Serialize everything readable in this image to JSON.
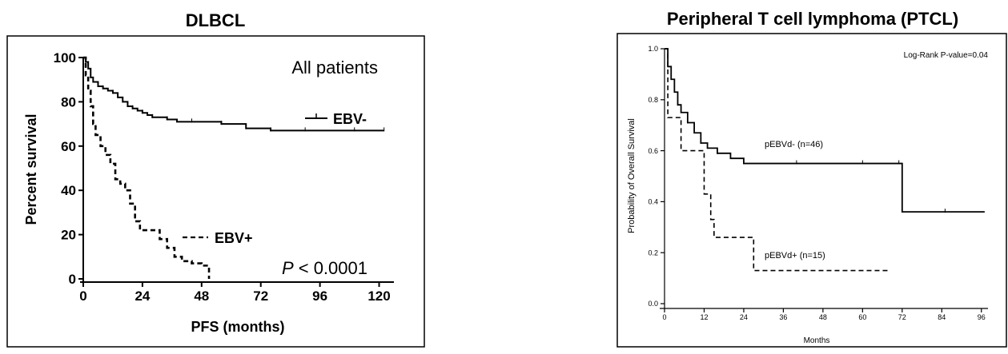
{
  "chart_data": [
    {
      "type": "line",
      "style": "kaplan-meier-step",
      "title": "DLBCL",
      "xlabel": "PFS (months)",
      "ylabel": "Percent survival",
      "xlim": [
        0,
        126
      ],
      "ylim": [
        0,
        100
      ],
      "xticks": [
        "0",
        "24",
        "48",
        "72",
        "96",
        "120"
      ],
      "yticks": [
        "0",
        "20",
        "40",
        "60",
        "80",
        "100"
      ],
      "annotation_group": "All patients",
      "annotation_p_italic": "P",
      "annotation_p_value": " < 0.0001",
      "grid": false,
      "series": [
        {
          "name": "EBV-",
          "line": "solid",
          "x": [
            0,
            1,
            2,
            3,
            4,
            6,
            8,
            10,
            12,
            14,
            16,
            18,
            20,
            22,
            24,
            26,
            28,
            30,
            34,
            38,
            44,
            50,
            56,
            62,
            66,
            70,
            76,
            84,
            90,
            100,
            110,
            118,
            122
          ],
          "y": [
            100,
            98,
            95,
            91,
            89,
            87,
            86,
            85,
            84,
            82,
            80,
            78,
            77,
            76,
            75,
            74,
            73,
            73,
            72,
            71,
            71,
            71,
            70,
            70,
            68,
            68,
            67,
            67,
            67,
            67,
            67,
            67,
            67
          ]
        },
        {
          "name": "EBV+",
          "line": "dashed",
          "x": [
            0,
            1,
            2,
            3,
            4,
            5,
            7,
            9,
            11,
            13,
            15,
            17,
            19,
            21,
            23,
            27,
            31,
            34,
            37,
            40,
            44,
            48,
            51
          ],
          "y": [
            100,
            92,
            85,
            78,
            70,
            65,
            60,
            56,
            52,
            45,
            43,
            40,
            34,
            26,
            22,
            22,
            18,
            14,
            10,
            8,
            7,
            6,
            0
          ]
        }
      ]
    },
    {
      "type": "line",
      "style": "kaplan-meier-step",
      "title": "Peripheral  T cell lymphoma (PTCL)",
      "xlabel": "Months",
      "ylabel": "Probability of Overall Survival",
      "xlim": [
        0,
        98
      ],
      "ylim": [
        0,
        1.0
      ],
      "xticks": [
        "0",
        "12",
        "24",
        "36",
        "48",
        "60",
        "72",
        "84",
        "96"
      ],
      "yticks": [
        "0.0",
        "0.2",
        "0.4",
        "0.6",
        "0.8",
        "1.0"
      ],
      "annotation_logrank": "Log-Rank P-value=0.04",
      "grid": false,
      "series": [
        {
          "name": "pEBVd- (n=46)",
          "line": "solid",
          "x": [
            0,
            1,
            2,
            3,
            4,
            5,
            7,
            9,
            11,
            13,
            16,
            20,
            24,
            30,
            40,
            50,
            60,
            65,
            71,
            72,
            85,
            97
          ],
          "y": [
            1.0,
            0.93,
            0.88,
            0.83,
            0.78,
            0.75,
            0.71,
            0.67,
            0.63,
            0.61,
            0.59,
            0.57,
            0.55,
            0.55,
            0.55,
            0.55,
            0.55,
            0.55,
            0.55,
            0.36,
            0.36,
            0.36
          ]
        },
        {
          "name": "pEBVd+ (n=15)",
          "line": "dashed",
          "x": [
            0,
            1,
            5,
            12,
            14,
            15,
            27,
            30,
            68
          ],
          "y": [
            1.0,
            0.73,
            0.6,
            0.43,
            0.33,
            0.26,
            0.13,
            0.13,
            0.13
          ]
        }
      ]
    }
  ]
}
